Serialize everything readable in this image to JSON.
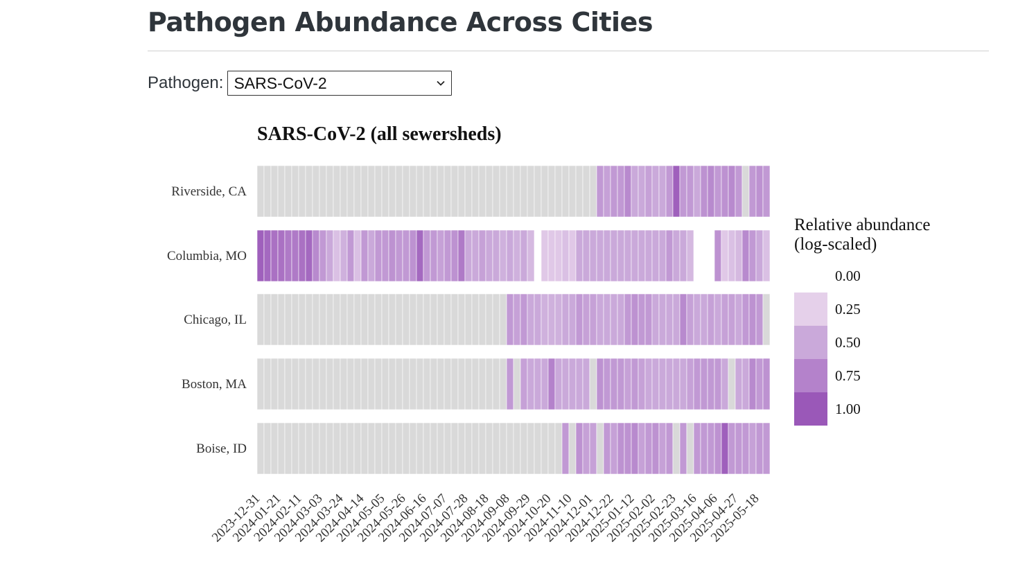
{
  "page": {
    "title": "Pathogen Abundance Across Cities"
  },
  "selector": {
    "label": "Pathogen:",
    "selected": "SARS-CoV-2",
    "icon": "chevron-down-icon"
  },
  "chart_data": {
    "type": "heatmap",
    "title": "SARS-CoV-2 (all sewersheds)",
    "xlabel": "",
    "ylabel": "",
    "x_tick_labels": [
      "2023-12-31",
      "2024-01-21",
      "2024-02-11",
      "2024-03-03",
      "2024-03-24",
      "2024-04-14",
      "2024-05-05",
      "2024-05-26",
      "2024-06-16",
      "2024-07-07",
      "2024-07-28",
      "2024-08-18",
      "2024-09-08",
      "2024-09-29",
      "2024-10-20",
      "2024-11-10",
      "2024-12-01",
      "2024-12-22",
      "2025-01-12",
      "2025-02-02",
      "2025-02-23",
      "2025-03-16",
      "2025-04-06",
      "2025-04-27",
      "2025-05-18"
    ],
    "weeks_per_tick": 3,
    "n_weeks": 74,
    "rows": [
      {
        "name": "Riverside, CA",
        "values": [
          0,
          0,
          0,
          0,
          0,
          0,
          0,
          0,
          0,
          0,
          0,
          0,
          0,
          0,
          0,
          0,
          0,
          0,
          0,
          0,
          0,
          0,
          0,
          0,
          0,
          0,
          0,
          0,
          0,
          0,
          0,
          0,
          0,
          0,
          0,
          0,
          0,
          0,
          0,
          0,
          0,
          0,
          0,
          0,
          0,
          0,
          0,
          0,
          0,
          0.6,
          0.55,
          0.6,
          0.6,
          0.7,
          0.5,
          0.5,
          0.55,
          0.5,
          0.5,
          0.6,
          0.95,
          0.6,
          0.6,
          0.5,
          0.65,
          0.7,
          0.6,
          0.65,
          0.7,
          0.6,
          0,
          0.6,
          0.65,
          0.6
        ]
      },
      {
        "name": "Columbia, MO",
        "values": [
          0.95,
          0.9,
          0.85,
          0.85,
          0.8,
          0.8,
          0.85,
          0.9,
          0.7,
          0.6,
          0.5,
          0.35,
          0.45,
          0.6,
          0.35,
          0.6,
          0.5,
          0.6,
          0.6,
          0.65,
          0.6,
          0.6,
          0.65,
          0.9,
          0.6,
          0.6,
          0.55,
          0.6,
          0.65,
          0.8,
          0.5,
          0.5,
          0.55,
          0.5,
          0.5,
          0.45,
          0.5,
          0.45,
          0.5,
          0.4,
          null,
          0.3,
          0.3,
          0.3,
          0.35,
          0.3,
          0.5,
          0.5,
          0.5,
          0.5,
          0.5,
          0.5,
          0.5,
          0.5,
          0.5,
          0.5,
          0.5,
          0.5,
          0.5,
          0.6,
          0.5,
          0.5,
          0.4,
          null,
          null,
          null,
          0.65,
          0.3,
          0.35,
          0.4,
          0.7,
          0.6,
          0.5,
          0.35
        ]
      },
      {
        "name": "Chicago, IL",
        "values": [
          0,
          0,
          0,
          0,
          0,
          0,
          0,
          0,
          0,
          0,
          0,
          0,
          0,
          0,
          0,
          0,
          0,
          0,
          0,
          0,
          0,
          0,
          0,
          0,
          0,
          0,
          0,
          0,
          0,
          0,
          0,
          0,
          0,
          0,
          0,
          0,
          0.6,
          0.55,
          0.6,
          0.5,
          0.5,
          0.45,
          0.45,
          0.45,
          0.5,
          0.5,
          0.6,
          0.55,
          0.55,
          0.5,
          0.5,
          0.5,
          0.5,
          0.6,
          0.65,
          0.6,
          0.6,
          0.5,
          0.5,
          0.5,
          0.5,
          0.7,
          0.55,
          0.5,
          0.5,
          0.55,
          0.5,
          0.55,
          0.55,
          0.5,
          0.6,
          0.65,
          0.6,
          0
        ]
      },
      {
        "name": "Boston, MA",
        "values": [
          0,
          0,
          0,
          0,
          0,
          0,
          0,
          0,
          0,
          0,
          0,
          0,
          0,
          0,
          0,
          0,
          0,
          0,
          0,
          0,
          0,
          0,
          0,
          0,
          0,
          0,
          0,
          0,
          0,
          0,
          0,
          0,
          0,
          0,
          0,
          0,
          0.6,
          0,
          0.55,
          0.5,
          0.5,
          0.5,
          0.75,
          0.5,
          0.5,
          0.5,
          0.5,
          0.5,
          0,
          0.65,
          0.6,
          0.6,
          0.6,
          0.55,
          0.6,
          0.55,
          0.5,
          0.5,
          0.5,
          0.5,
          0.5,
          0.5,
          0.55,
          0.6,
          0.6,
          0.6,
          0.6,
          0.5,
          0,
          0.5,
          0.5,
          0.7,
          0.6,
          0.65
        ]
      },
      {
        "name": "Boise, ID",
        "values": [
          0,
          0,
          0,
          0,
          0,
          0,
          0,
          0,
          0,
          0,
          0,
          0,
          0,
          0,
          0,
          0,
          0,
          0,
          0,
          0,
          0,
          0,
          0,
          0,
          0,
          0,
          0,
          0,
          0,
          0,
          0,
          0,
          0,
          0,
          0,
          0,
          0,
          0,
          0,
          0,
          0,
          0,
          0,
          0,
          0.6,
          0,
          0.65,
          0.55,
          0.55,
          0,
          0.6,
          0.55,
          0.65,
          0.65,
          0.7,
          0.55,
          0.6,
          0.65,
          0.55,
          0.6,
          0,
          0.6,
          0,
          0.6,
          0.6,
          0.6,
          0.65,
          0.95,
          0.6,
          0.6,
          0.6,
          0.55,
          0.6,
          0.6
        ]
      }
    ],
    "legend": {
      "title_lines": [
        "Relative abundance",
        "(log-scaled)"
      ],
      "ticks": [
        "0.00",
        "0.25",
        "0.50",
        "0.75",
        "1.00"
      ],
      "colors": [
        "#d9d9d9",
        "#e5d0ea",
        "#caa9da",
        "#b482cb",
        "#9a58b8"
      ]
    },
    "empty_color": "#d9d9d9"
  }
}
